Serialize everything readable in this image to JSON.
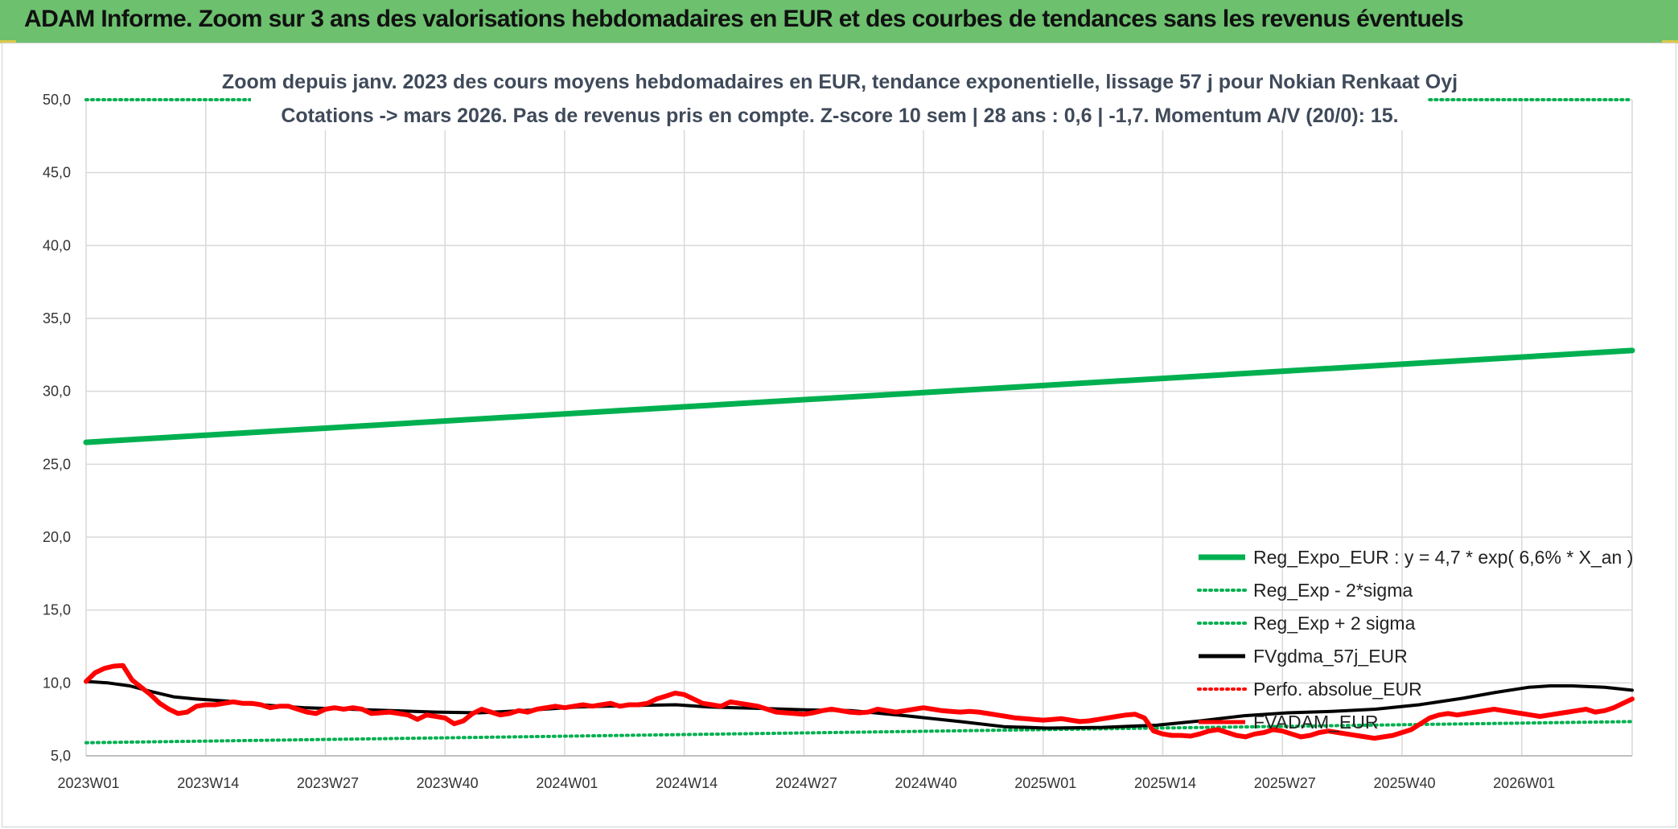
{
  "header": {
    "title": "ADAM Informe. Zoom sur 3 ans des valorisations hebdomadaires en EUR et des courbes de tendances sans les revenus éventuels"
  },
  "colors": {
    "banner": "#6cc06e",
    "green": "#00b050",
    "red": "#ff0000",
    "black": "#000000",
    "grid": "#d9d9d9"
  },
  "chart_data": {
    "type": "line",
    "title": "Zoom depuis janv. 2023 des cours moyens hebdomadaires en EUR, tendance exponentielle, lissage 57 j pour Nokian Renkaat Oyj",
    "subtitle": "Cotations -> mars 2026. Pas de revenus pris en compte. Z-score 10 sem | 28 ans : 0,6 | -1,7. Momentum A/V (20/0): 15.",
    "xlabel": "",
    "ylabel": "",
    "ylim": [
      5,
      50
    ],
    "yticks": [
      "5,0",
      "10,0",
      "15,0",
      "20,0",
      "25,0",
      "30,0",
      "35,0",
      "40,0",
      "45,0",
      "50,0"
    ],
    "xticks": [
      "2023W01",
      "2023W14",
      "2023W27",
      "2023W40",
      "2024W01",
      "2024W14",
      "2024W27",
      "2024W40",
      "2025W01",
      "2025W14",
      "2025W27",
      "2025W40",
      "2026W01"
    ],
    "x_count": 169,
    "grid": true,
    "legend_position": "bottom-right",
    "series": [
      {
        "name": "Reg_Expo_EUR : y = 4,7 * exp( 6,6% *  X_an )",
        "style": "solid",
        "color": "#00b050",
        "width": 7,
        "points": [
          [
            0,
            26.5
          ],
          [
            168,
            32.8
          ]
        ]
      },
      {
        "name": "Reg_Exp - 2*sigma",
        "style": "dotted",
        "color": "#00b050",
        "width": 4,
        "points": [
          [
            0,
            5.9
          ],
          [
            168,
            7.35
          ]
        ]
      },
      {
        "name": "Reg_Exp + 2 sigma",
        "style": "dotted",
        "color": "#00b050",
        "width": 4,
        "points": [
          [
            0,
            50.0
          ],
          [
            168,
            50.0
          ]
        ]
      },
      {
        "name": "FVgdma_57j_EUR",
        "style": "solid",
        "color": "#000000",
        "width": 4,
        "points": [
          [
            0,
            10.1
          ],
          [
            4,
            10.0
          ],
          [
            8,
            9.8
          ],
          [
            12,
            9.4
          ],
          [
            16,
            9.05
          ],
          [
            20,
            8.9
          ],
          [
            26,
            8.75
          ],
          [
            30,
            8.55
          ],
          [
            40,
            8.3
          ],
          [
            52,
            8.15
          ],
          [
            64,
            8.0
          ],
          [
            72,
            7.95
          ],
          [
            80,
            8.1
          ],
          [
            90,
            8.35
          ],
          [
            100,
            8.45
          ],
          [
            108,
            8.5
          ],
          [
            114,
            8.35
          ],
          [
            124,
            8.25
          ],
          [
            132,
            8.15
          ],
          [
            140,
            8.1
          ],
          [
            150,
            7.75
          ],
          [
            160,
            7.35
          ],
          [
            168,
            7.0
          ],
          [
            176,
            6.9
          ],
          [
            186,
            6.95
          ],
          [
            196,
            7.1
          ],
          [
            204,
            7.4
          ],
          [
            212,
            7.75
          ],
          [
            220,
            7.95
          ],
          [
            228,
            8.05
          ],
          [
            236,
            8.2
          ],
          [
            244,
            8.5
          ],
          [
            252,
            8.95
          ],
          [
            258,
            9.35
          ],
          [
            264,
            9.7
          ],
          [
            268,
            9.8
          ],
          [
            272,
            9.8
          ],
          [
            278,
            9.7
          ],
          [
            283,
            9.5
          ]
        ],
        "scale_note": ""
      },
      {
        "name": "Perfo. absolue_EUR",
        "style": "dotted",
        "color": "#ff0000",
        "width": 3,
        "points": []
      },
      {
        "name": "FVADAM_EUR",
        "style": "solid",
        "color": "#ff0000",
        "width": 6,
        "points": []
      }
    ]
  }
}
